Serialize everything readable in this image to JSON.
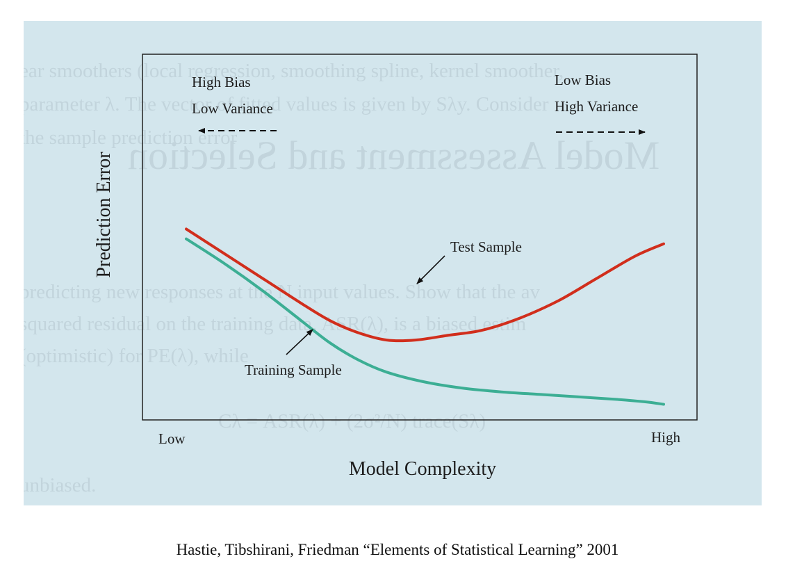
{
  "slide": {
    "background_color": "#d3e6ed",
    "background_text": [
      "ear smoothers (local regression, smoothing spline, kernel smoother,",
      "parameter λ. The vector of fitted values is given by Sλy. Consider",
      "the sample prediction error",
      "predicting new responses at the N input values. Show that the av",
      "squared residual on the training data, ASR(λ), is a biased estim",
      "(optimistic) for PE(λ), while",
      "Cλ = ASR(λ) + (2σ²/N) trace(Sλ)",
      "unbiased."
    ],
    "background_heading": "Model Assessment and Selection"
  },
  "chart_data": {
    "type": "line",
    "xlabel": "Model Complexity",
    "ylabel": "Prediction Error",
    "x_tick_labels": [
      "Low",
      "High"
    ],
    "xlim": [
      0,
      1
    ],
    "ylim": [
      0,
      1
    ],
    "series": [
      {
        "name": "Test Sample",
        "color": "#d12e1c",
        "x": [
          0.0,
          0.08,
          0.16,
          0.24,
          0.3,
          0.36,
          0.42,
          0.48,
          0.55,
          0.62,
          0.7,
          0.78,
          0.86,
          0.94,
          1.0
        ],
        "y": [
          0.72,
          0.62,
          0.52,
          0.42,
          0.35,
          0.3,
          0.27,
          0.27,
          0.29,
          0.31,
          0.36,
          0.43,
          0.52,
          0.61,
          0.66
        ]
      },
      {
        "name": "Training Sample",
        "color": "#3cae94",
        "x": [
          0.0,
          0.08,
          0.16,
          0.24,
          0.3,
          0.36,
          0.42,
          0.5,
          0.58,
          0.66,
          0.74,
          0.82,
          0.9,
          0.96,
          1.0
        ],
        "y": [
          0.68,
          0.58,
          0.47,
          0.35,
          0.26,
          0.19,
          0.14,
          0.1,
          0.075,
          0.06,
          0.05,
          0.04,
          0.03,
          0.02,
          0.01
        ]
      }
    ],
    "annotations": {
      "left_line1": "High Bias",
      "left_line2": "Low Variance",
      "right_line1": "Low Bias",
      "right_line2": "High Variance",
      "test_label": "Test Sample",
      "train_label": "Training Sample"
    },
    "grid": false,
    "legend": "none"
  },
  "caption": "Hastie, Tibshirani, Friedman “Elements of Statistical Learning” 2001"
}
